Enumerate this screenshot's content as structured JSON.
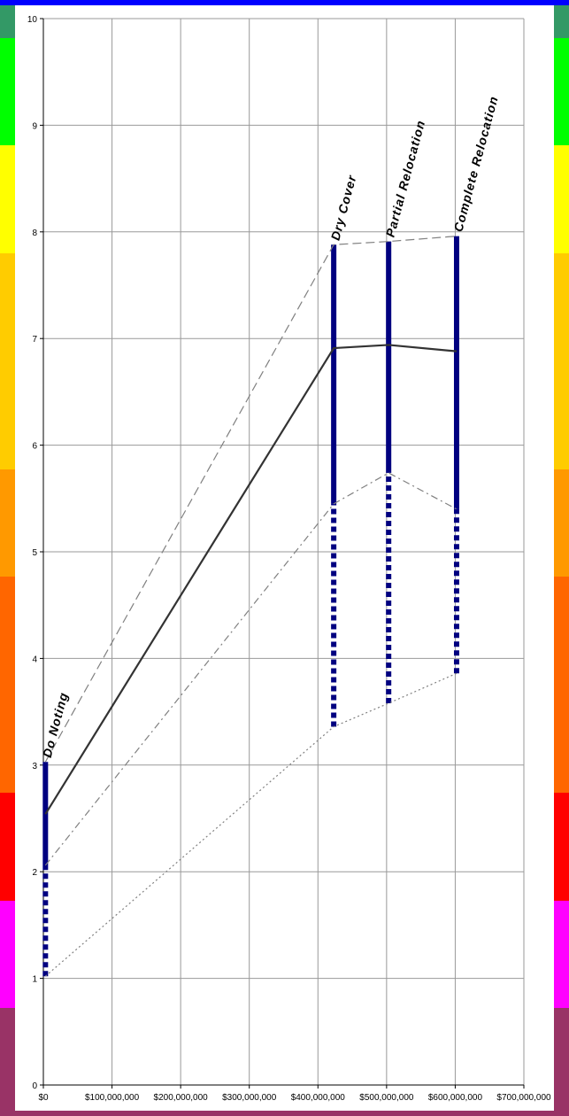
{
  "chart_data": {
    "type": "line",
    "title": "",
    "xlabel": "",
    "ylabel": "",
    "xlim": [
      0,
      700000000
    ],
    "ylim": [
      0,
      10
    ],
    "grid": true,
    "legend": "none",
    "x_ticks": [
      0,
      100000000,
      200000000,
      300000000,
      400000000,
      500000000,
      600000000,
      700000000
    ],
    "x_tick_labels": [
      "$0",
      "$100,000,000",
      "$200,000,000",
      "$300,000,000",
      "$400,000,000",
      "$500,000,000",
      "$600,000,000",
      "$700,000,000"
    ],
    "y_ticks": [
      0,
      1,
      2,
      3,
      4,
      5,
      6,
      7,
      8,
      9,
      10
    ],
    "y_tick_labels": [
      "0",
      "1",
      "2",
      "3",
      "4",
      "5",
      "6",
      "7",
      "8",
      "9",
      "10"
    ],
    "alternatives": [
      {
        "name": "Do Noting",
        "x": 3000000,
        "max": 3.03,
        "upper": 2.06,
        "mean": 2.54,
        "lower": 1.02
      },
      {
        "name": "Dry Cover",
        "x": 423000000,
        "max": 7.88,
        "upper": 5.45,
        "mean": 6.91,
        "lower": 3.36
      },
      {
        "name": "Partial Relocation",
        "x": 503000000,
        "max": 7.91,
        "upper": 5.74,
        "mean": 6.94,
        "lower": 3.58
      },
      {
        "name": "Complete Relocation",
        "x": 602000000,
        "max": 7.96,
        "upper": 5.4,
        "mean": 6.88,
        "lower": 3.86
      }
    ],
    "series": [
      {
        "key": "max",
        "style": "dashed",
        "color": "#808080"
      },
      {
        "key": "mean",
        "style": "solid",
        "color": "#333333"
      },
      {
        "key": "upper",
        "style": "dashdot",
        "color": "#808080"
      },
      {
        "key": "lower",
        "style": "dotted",
        "color": "#808080"
      }
    ]
  },
  "colors": {
    "background": "#ffffff",
    "grid": "#999999",
    "bar": "#000080",
    "top_rule": "#0000ff",
    "bottom_rule": "#993366",
    "scale_bands": [
      "#993366",
      "#ff00ff",
      "#ff0000",
      "#ff6600",
      "#ff6600",
      "#ff9900",
      "#ffcc00",
      "#ffcc00",
      "#ffff00",
      "#00ff00",
      "#339966",
      "#33cccc"
    ]
  }
}
